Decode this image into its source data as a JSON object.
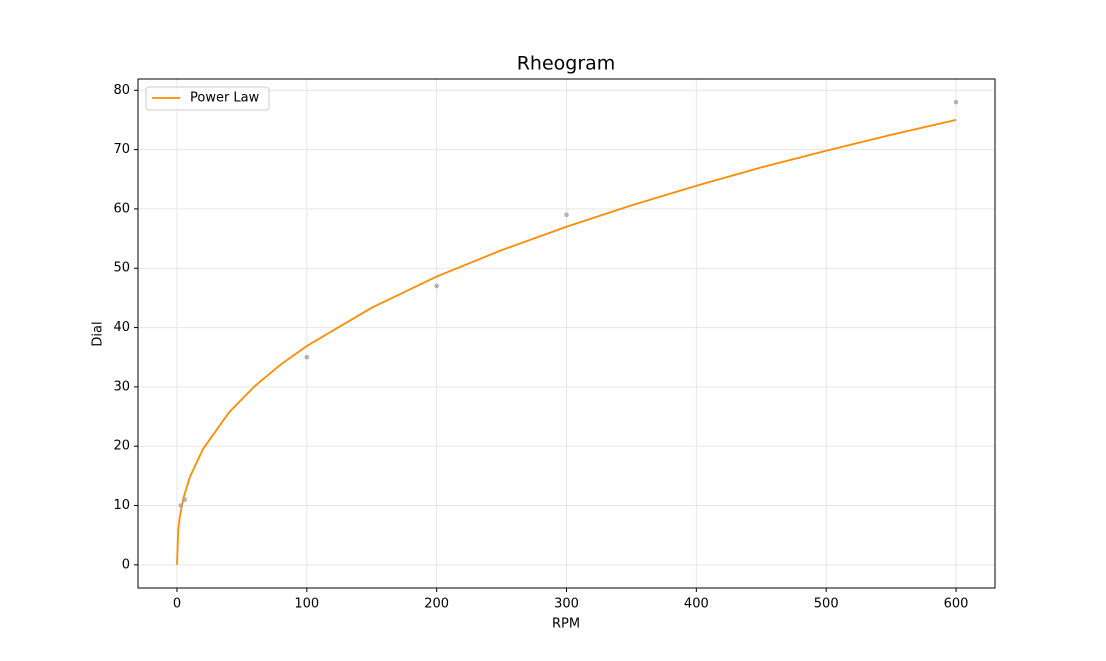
{
  "chart_data": {
    "type": "line",
    "title": "Rheogram",
    "x_label": "RPM",
    "y_label": "Dial",
    "xlim": [
      -30,
      630
    ],
    "xticks": [
      0,
      100,
      200,
      300,
      400,
      500,
      600
    ],
    "ylim": [
      -3.9,
      81.9
    ],
    "yticks": [
      0,
      10,
      20,
      30,
      40,
      50,
      60,
      70,
      80
    ],
    "grid": true,
    "legend": "upper-left",
    "series": [
      {
        "name": "Power Law",
        "type": "line",
        "color": "#ff8c00",
        "x": [
          0,
          1,
          2,
          5,
          10,
          20,
          40,
          60,
          80,
          100,
          150,
          200,
          250,
          300,
          350,
          400,
          450,
          500,
          550,
          600
        ],
        "values": [
          0,
          5.96,
          7.84,
          11.27,
          14.83,
          19.52,
          25.69,
          30.15,
          33.79,
          36.9,
          43.35,
          48.6,
          53.05,
          57.0,
          60.6,
          63.9,
          67.0,
          69.8,
          72.5,
          75.0
        ]
      },
      {
        "type": "scatter",
        "color": "#a0a0a0",
        "x": [
          3,
          6,
          100,
          200,
          300,
          600
        ],
        "values": [
          10,
          11,
          35,
          47,
          59,
          78
        ]
      }
    ]
  }
}
